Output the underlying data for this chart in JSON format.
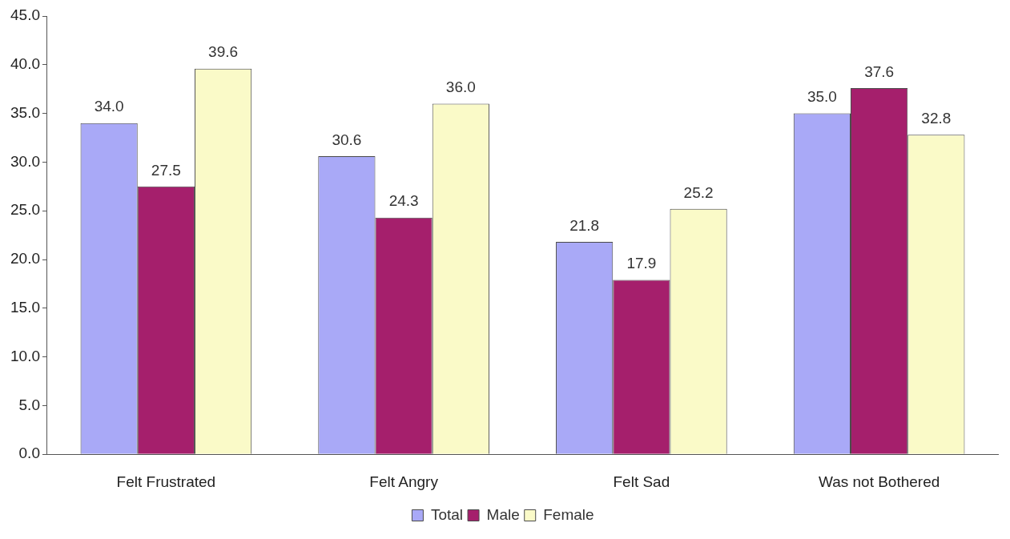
{
  "chart_data": {
    "type": "bar",
    "categories": [
      "Felt Frustrated",
      "Felt Angry",
      "Felt Sad",
      "Was not Bothered"
    ],
    "series": [
      {
        "name": "Total",
        "color": "#a9a9f7",
        "values": [
          34.0,
          30.6,
          21.8,
          35.0
        ],
        "value_labels": [
          "34.0",
          "30.6",
          "21.8",
          "35.0"
        ]
      },
      {
        "name": "Male",
        "color": "#a51f6c",
        "values": [
          27.5,
          24.3,
          17.9,
          37.6
        ],
        "value_labels": [
          "27.5",
          "24.3",
          "17.9",
          "37.6"
        ]
      },
      {
        "name": "Female",
        "color": "#fafac8",
        "values": [
          39.6,
          36.0,
          25.2,
          32.8
        ],
        "value_labels": [
          "39.6",
          "36.0",
          "25.2",
          "32.8"
        ]
      }
    ],
    "ylim": [
      0,
      45
    ],
    "yticks": [
      {
        "value": 0,
        "label": "0.0"
      },
      {
        "value": 5,
        "label": "5.0"
      },
      {
        "value": 10,
        "label": "10.0"
      },
      {
        "value": 15,
        "label": "15.0"
      },
      {
        "value": 20,
        "label": "20.0"
      },
      {
        "value": 25,
        "label": "25.0"
      },
      {
        "value": 30,
        "label": "30.0"
      },
      {
        "value": 35,
        "label": "35.0"
      },
      {
        "value": 40,
        "label": "40.0"
      },
      {
        "value": 45,
        "label": "45.0"
      }
    ],
    "grid": false,
    "legend": "bottom"
  }
}
